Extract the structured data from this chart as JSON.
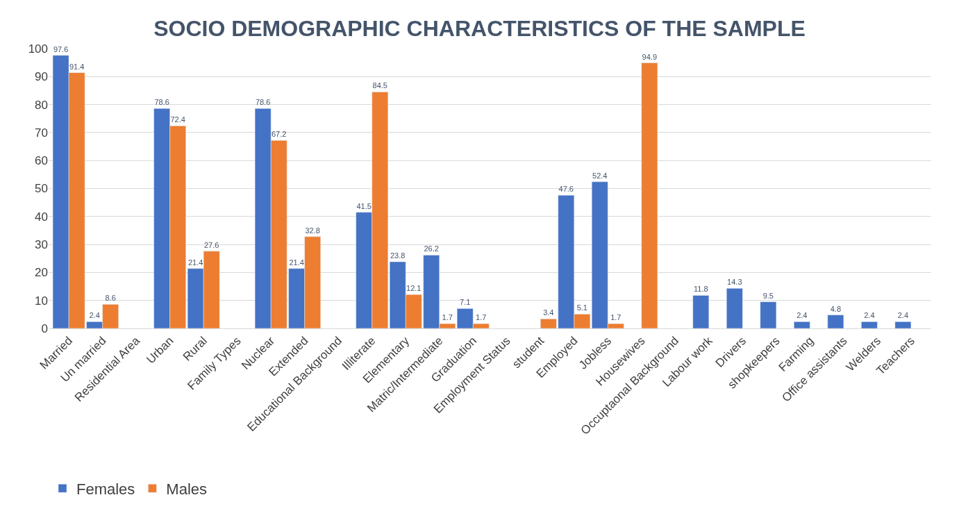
{
  "chart_data": {
    "type": "bar",
    "title": "SOCIO DEMOGRAPHIC CHARACTERISTICS OF THE SAMPLE",
    "categories": [
      "Married",
      "Un married",
      "Residential Area",
      "Urban",
      "Rural",
      "Family Types",
      "Nuclear",
      "Extended",
      "Educational Background",
      "Illiterate",
      "Elementary",
      "Matric/Intermediate",
      "Graduation",
      "Employment Status",
      "student",
      "Employed",
      "Jobless",
      "Housewives",
      "Occuptaonal Background",
      "Labour work",
      "Drivers",
      "shopkeepers",
      "Farming",
      "Office assistants",
      "Welders",
      "Teachers"
    ],
    "series": [
      {
        "name": "Females",
        "color": "#4472c4",
        "values": [
          97.6,
          2.4,
          null,
          78.6,
          21.4,
          null,
          78.6,
          21.4,
          null,
          41.5,
          23.8,
          26.2,
          7.1,
          null,
          null,
          47.6,
          52.4,
          null,
          null,
          11.8,
          14.3,
          9.5,
          2.4,
          4.8,
          2.4,
          2.4
        ]
      },
      {
        "name": "Males",
        "color": "#ed7d31",
        "values": [
          91.4,
          8.6,
          null,
          72.4,
          27.6,
          null,
          67.2,
          32.8,
          null,
          84.5,
          12.1,
          1.7,
          1.7,
          null,
          3.4,
          5.1,
          1.7,
          94.9,
          null,
          null,
          null,
          null,
          null,
          null,
          null,
          null
        ]
      }
    ],
    "ylim": [
      0,
      100
    ],
    "yticks": [
      0,
      10,
      20,
      30,
      40,
      50,
      60,
      70,
      80,
      90,
      100
    ],
    "grid": "y",
    "legend": "bottom left",
    "data_labels": true
  }
}
